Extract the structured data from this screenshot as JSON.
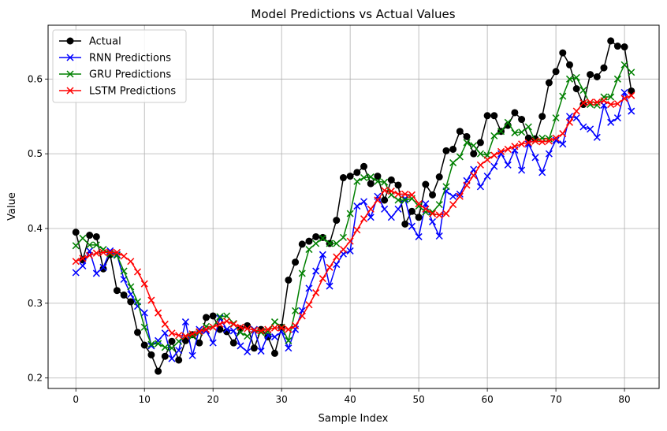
{
  "chart_data": {
    "type": "line",
    "title": "Model Predictions vs Actual Values",
    "xlabel": "Sample Index",
    "ylabel": "Value",
    "xlim": [
      -4.05,
      85.05
    ],
    "ylim": [
      0.186,
      0.672
    ],
    "xticks": [
      0,
      10,
      20,
      30,
      40,
      50,
      60,
      70,
      80
    ],
    "yticks": [
      0.2,
      0.3,
      0.4,
      0.5,
      0.6
    ],
    "ytick_labels": [
      "0.2",
      "0.3",
      "0.4",
      "0.5",
      "0.6"
    ],
    "grid": true,
    "legend_position": "upper-left",
    "series": [
      {
        "name": "Actual",
        "color": "#000000",
        "marker": "circle",
        "values": [
          0.395,
          0.358,
          0.391,
          0.389,
          0.346,
          0.365,
          0.317,
          0.311,
          0.302,
          0.261,
          0.244,
          0.231,
          0.209,
          0.229,
          0.249,
          0.224,
          0.25,
          0.258,
          0.247,
          0.281,
          0.283,
          0.265,
          0.262,
          0.247,
          0.266,
          0.27,
          0.24,
          0.265,
          0.255,
          0.233,
          0.268,
          0.331,
          0.355,
          0.379,
          0.383,
          0.389,
          0.388,
          0.38,
          0.411,
          0.468,
          0.47,
          0.475,
          0.483,
          0.46,
          0.47,
          0.438,
          0.465,
          0.458,
          0.406,
          0.423,
          0.415,
          0.459,
          0.445,
          0.469,
          0.504,
          0.506,
          0.53,
          0.523,
          0.5,
          0.515,
          0.551,
          0.551,
          0.53,
          0.538,
          0.555,
          0.546,
          0.521,
          0.52,
          0.55,
          0.595,
          0.61,
          0.635,
          0.619,
          0.587,
          0.566,
          0.606,
          0.603,
          0.615,
          0.651,
          0.644,
          0.643,
          0.584
        ]
      },
      {
        "name": "RNN Predictions",
        "color": "#0000ff",
        "marker": "x",
        "values": [
          0.341,
          0.35,
          0.37,
          0.34,
          0.348,
          0.37,
          0.365,
          0.332,
          0.312,
          0.296,
          0.287,
          0.243,
          0.25,
          0.26,
          0.226,
          0.237,
          0.275,
          0.23,
          0.265,
          0.263,
          0.247,
          0.28,
          0.265,
          0.263,
          0.243,
          0.235,
          0.265,
          0.236,
          0.257,
          0.255,
          0.262,
          0.24,
          0.265,
          0.29,
          0.32,
          0.343,
          0.365,
          0.323,
          0.352,
          0.366,
          0.37,
          0.43,
          0.436,
          0.415,
          0.443,
          0.426,
          0.415,
          0.426,
          0.44,
          0.403,
          0.389,
          0.433,
          0.409,
          0.39,
          0.45,
          0.443,
          0.446,
          0.464,
          0.479,
          0.456,
          0.47,
          0.483,
          0.5,
          0.485,
          0.505,
          0.478,
          0.513,
          0.495,
          0.475,
          0.5,
          0.518,
          0.513,
          0.55,
          0.548,
          0.536,
          0.533,
          0.522,
          0.565,
          0.542,
          0.548,
          0.582,
          0.557
        ]
      },
      {
        "name": "GRU Predictions",
        "color": "#008000",
        "marker": "x",
        "values": [
          0.377,
          0.387,
          0.378,
          0.378,
          0.372,
          0.366,
          0.364,
          0.343,
          0.322,
          0.302,
          0.268,
          0.245,
          0.246,
          0.241,
          0.24,
          0.249,
          0.256,
          0.256,
          0.261,
          0.269,
          0.268,
          0.282,
          0.283,
          0.273,
          0.261,
          0.256,
          0.264,
          0.261,
          0.262,
          0.275,
          0.268,
          0.25,
          0.29,
          0.34,
          0.372,
          0.38,
          0.387,
          0.38,
          0.38,
          0.388,
          0.42,
          0.463,
          0.468,
          0.469,
          0.463,
          0.462,
          0.445,
          0.438,
          0.438,
          0.44,
          0.43,
          0.422,
          0.422,
          0.432,
          0.456,
          0.488,
          0.496,
          0.515,
          0.511,
          0.5,
          0.498,
          0.524,
          0.53,
          0.542,
          0.528,
          0.529,
          0.536,
          0.517,
          0.521,
          0.52,
          0.548,
          0.577,
          0.6,
          0.602,
          0.585,
          0.566,
          0.565,
          0.576,
          0.576,
          0.6,
          0.619,
          0.609
        ]
      },
      {
        "name": "LSTM Predictions",
        "color": "#ff0000",
        "marker": "x",
        "values": [
          0.356,
          0.36,
          0.364,
          0.367,
          0.368,
          0.368,
          0.368,
          0.363,
          0.356,
          0.342,
          0.326,
          0.304,
          0.287,
          0.272,
          0.26,
          0.257,
          0.256,
          0.259,
          0.262,
          0.265,
          0.268,
          0.272,
          0.276,
          0.272,
          0.268,
          0.266,
          0.264,
          0.263,
          0.265,
          0.267,
          0.267,
          0.265,
          0.27,
          0.283,
          0.298,
          0.314,
          0.333,
          0.348,
          0.362,
          0.372,
          0.383,
          0.398,
          0.413,
          0.426,
          0.438,
          0.451,
          0.45,
          0.446,
          0.446,
          0.445,
          0.433,
          0.426,
          0.42,
          0.418,
          0.42,
          0.432,
          0.443,
          0.458,
          0.471,
          0.485,
          0.492,
          0.498,
          0.503,
          0.506,
          0.51,
          0.513,
          0.515,
          0.517,
          0.516,
          0.517,
          0.521,
          0.527,
          0.542,
          0.557,
          0.568,
          0.569,
          0.569,
          0.571,
          0.566,
          0.567,
          0.574,
          0.578
        ]
      }
    ]
  }
}
